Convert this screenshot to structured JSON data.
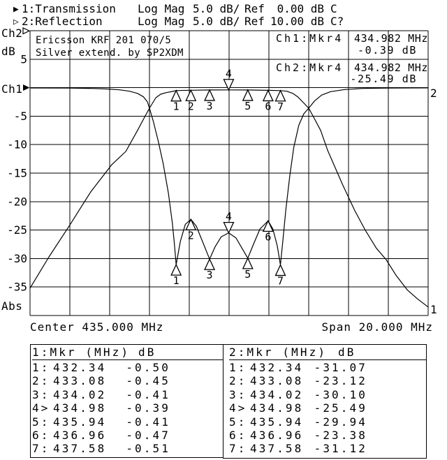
{
  "header": {
    "rows": [
      {
        "marker_icon": "filled-right-triangle-icon",
        "title": "1:Transmission",
        "format": "Log Mag",
        "scale": "5.0 dB/",
        "ref_label": "Ref",
        "ref_value": "0.00 dB",
        "status": "C"
      },
      {
        "marker_icon": "hollow-right-triangle-icon",
        "title": "2:Reflection",
        "format": "Log Mag",
        "scale": "5.0 dB/",
        "ref_label": "Ref",
        "ref_value": "10.00 dB",
        "status": "C?"
      }
    ]
  },
  "graph": {
    "title_line1": "Ericsson KRF 201 070/5",
    "title_line2": "Silver extend. by SP2XDM",
    "readouts": [
      {
        "channel": "Ch1:Mkr4",
        "freq": "434.982 MHz",
        "value": "-0.39 dB"
      },
      {
        "channel": "Ch2:Mkr4",
        "freq": "434.982 MHz",
        "value": "-25.49 dB"
      }
    ],
    "y_axis": {
      "top_channel": "Ch2",
      "unit": "dB",
      "ref_channel": "Ch1",
      "bottom_label": "Abs"
    },
    "x_axis": {
      "center": "Center 435.000 MHz",
      "span": "Span 20.000 MHz"
    }
  },
  "chart_data": {
    "type": "line",
    "title": "Ericsson KRF 201 070/5",
    "subtitle": "Silver extend. by SP2XDM",
    "xlabel": "Frequency (MHz), Center 435.000 MHz, Span 20.000 MHz",
    "ylabel": "dB (5.0 dB/div)",
    "xlim": [
      425,
      445
    ],
    "ylim": [
      -40,
      10
    ],
    "grid": true,
    "yticks": [
      {
        "v": 5,
        "t": "5"
      },
      {
        "v": -5,
        "t": "-5"
      },
      {
        "v": -10,
        "t": "-10"
      },
      {
        "v": -15,
        "t": "-15"
      },
      {
        "v": -20,
        "t": "-20"
      },
      {
        "v": -25,
        "t": "-25"
      },
      {
        "v": -30,
        "t": "-30"
      },
      {
        "v": -35,
        "t": "-35"
      }
    ],
    "series": [
      {
        "name": "transmission",
        "end_label": "1",
        "data": [
          [
            425.0,
            -35.2
          ],
          [
            425.95,
            -29.7
          ],
          [
            427.0,
            -24.1
          ],
          [
            428.05,
            -18.3
          ],
          [
            429.11,
            -13.5
          ],
          [
            429.81,
            -11.2
          ],
          [
            430.4,
            -7.5
          ],
          [
            430.75,
            -5.2
          ],
          [
            431.0,
            -3.6
          ],
          [
            431.32,
            -1.76
          ],
          [
            431.56,
            -1.15
          ],
          [
            431.84,
            -0.87
          ],
          [
            432.16,
            -0.66
          ],
          [
            432.34,
            -0.5
          ],
          [
            433.08,
            -0.45
          ],
          [
            434.02,
            -0.41
          ],
          [
            434.98,
            -0.39
          ],
          [
            435.94,
            -0.41
          ],
          [
            436.96,
            -0.47
          ],
          [
            437.58,
            -0.51
          ],
          [
            437.9,
            -0.62
          ],
          [
            438.2,
            -1.0
          ],
          [
            438.45,
            -1.6
          ],
          [
            438.7,
            -2.5
          ],
          [
            439.0,
            -3.6
          ],
          [
            439.25,
            -5.2
          ],
          [
            439.6,
            -7.5
          ],
          [
            439.95,
            -11.0
          ],
          [
            440.7,
            -17.0
          ],
          [
            441.3,
            -21.5
          ],
          [
            441.84,
            -25.0
          ],
          [
            442.4,
            -28.2
          ],
          [
            442.89,
            -30.2
          ],
          [
            443.4,
            -33.0
          ],
          [
            443.95,
            -35.5
          ],
          [
            444.47,
            -37.1
          ],
          [
            445.0,
            -38.5
          ]
        ]
      },
      {
        "name": "reflection",
        "end_label": "2",
        "data": [
          [
            425.0,
            -0.05
          ],
          [
            427.0,
            -0.07
          ],
          [
            428.1,
            -0.13
          ],
          [
            428.8,
            -0.22
          ],
          [
            429.5,
            -0.38
          ],
          [
            430.0,
            -0.62
          ],
          [
            430.4,
            -1.0
          ],
          [
            430.7,
            -1.6
          ],
          [
            430.9,
            -2.5
          ],
          [
            431.0,
            -3.6
          ],
          [
            431.2,
            -6.0
          ],
          [
            431.45,
            -9.5
          ],
          [
            431.7,
            -13.5
          ],
          [
            431.95,
            -18.5
          ],
          [
            432.15,
            -23.8
          ],
          [
            432.25,
            -27.3
          ],
          [
            432.34,
            -31.07
          ],
          [
            432.55,
            -27.0
          ],
          [
            432.8,
            -24.0
          ],
          [
            433.08,
            -23.12
          ],
          [
            433.35,
            -24.3
          ],
          [
            433.7,
            -27.3
          ],
          [
            434.02,
            -30.1
          ],
          [
            434.3,
            -27.9
          ],
          [
            434.6,
            -26.2
          ],
          [
            434.98,
            -25.49
          ],
          [
            435.35,
            -26.4
          ],
          [
            435.65,
            -28.2
          ],
          [
            435.94,
            -29.94
          ],
          [
            436.2,
            -27.7
          ],
          [
            436.55,
            -24.8
          ],
          [
            436.96,
            -23.38
          ],
          [
            437.2,
            -24.8
          ],
          [
            437.42,
            -27.8
          ],
          [
            437.58,
            -31.12
          ],
          [
            437.7,
            -27.0
          ],
          [
            437.85,
            -21.5
          ],
          [
            438.05,
            -15.5
          ],
          [
            438.25,
            -10.5
          ],
          [
            438.5,
            -6.6
          ],
          [
            438.75,
            -4.6
          ],
          [
            439.0,
            -3.6
          ],
          [
            439.3,
            -2.3
          ],
          [
            439.65,
            -1.3
          ],
          [
            440.1,
            -0.7
          ],
          [
            440.8,
            -0.33
          ],
          [
            441.7,
            -0.14
          ],
          [
            443.0,
            -0.06
          ],
          [
            445.0,
            -0.04
          ]
        ]
      }
    ],
    "markers": [
      {
        "n": "1",
        "freq": 432.34,
        "transmission_db": -0.5,
        "reflection_db": -31.07,
        "active": false
      },
      {
        "n": "2",
        "freq": 433.08,
        "transmission_db": -0.45,
        "reflection_db": -23.12,
        "active": false
      },
      {
        "n": "3",
        "freq": 434.02,
        "transmission_db": -0.41,
        "reflection_db": -30.1,
        "active": false
      },
      {
        "n": "4",
        "freq": 434.98,
        "transmission_db": -0.39,
        "reflection_db": -25.49,
        "active": true
      },
      {
        "n": "5",
        "freq": 435.94,
        "transmission_db": -0.41,
        "reflection_db": -29.94,
        "active": false
      },
      {
        "n": "6",
        "freq": 436.96,
        "transmission_db": -0.47,
        "reflection_db": -23.38,
        "active": false
      },
      {
        "n": "7",
        "freq": 437.58,
        "transmission_db": -0.51,
        "reflection_db": -31.12,
        "active": false
      }
    ]
  },
  "tables": [
    {
      "header_left": "1:Mkr (MHz)",
      "header_right": "dB",
      "rows": [
        {
          "label": "1:",
          "freq": "432.34",
          "db": "-0.50"
        },
        {
          "label": "2:",
          "freq": "433.08",
          "db": "-0.45"
        },
        {
          "label": "3:",
          "freq": "434.02",
          "db": "-0.41"
        },
        {
          "label": "4>",
          "freq": "434.98",
          "db": "-0.39"
        },
        {
          "label": "5:",
          "freq": "435.94",
          "db": "-0.41"
        },
        {
          "label": "6:",
          "freq": "436.96",
          "db": "-0.47"
        },
        {
          "label": "7:",
          "freq": "437.58",
          "db": "-0.51"
        }
      ]
    },
    {
      "header_left": "2:Mkr (MHz)",
      "header_right": "dB",
      "rows": [
        {
          "label": "1:",
          "freq": "432.34",
          "db": "-31.07"
        },
        {
          "label": "2:",
          "freq": "433.08",
          "db": "-23.12"
        },
        {
          "label": "3:",
          "freq": "434.02",
          "db": "-30.10"
        },
        {
          "label": "4>",
          "freq": "434.98",
          "db": "-25.49"
        },
        {
          "label": "5:",
          "freq": "435.94",
          "db": "-29.94"
        },
        {
          "label": "6:",
          "freq": "436.96",
          "db": "-23.38"
        },
        {
          "label": "7:",
          "freq": "437.58",
          "db": "-31.12"
        }
      ]
    }
  ],
  "icons": {
    "filled_triangle": "▶",
    "hollow_triangle": "▷"
  }
}
